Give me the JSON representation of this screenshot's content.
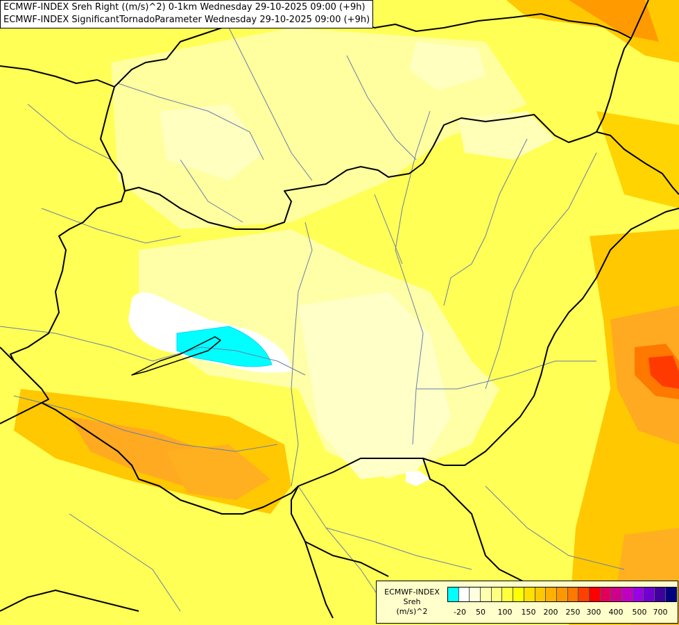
{
  "titles": [
    "ECMWF-INDEX Sreh Right ((m/s)^2) 0-1km Wednesday 29-10-2025 09:00 (+9h)",
    "ECMWF-INDEX SignificantTornadoParameter Wednesday 29-10-2025 09:00 (+9h)"
  ],
  "legend": {
    "name_lines": [
      "ECMWF-INDEX",
      "Sreh",
      "(m/s)^2"
    ],
    "colors": [
      "#00ffff",
      "#ffffff",
      "#ffffe0",
      "#ffffb0",
      "#ffff80",
      "#ffff40",
      "#ffff00",
      "#ffe000",
      "#ffc800",
      "#ffb000",
      "#ff9800",
      "#ff7800",
      "#ff4000",
      "#ff0000",
      "#e0005a",
      "#d0008c",
      "#c000c0",
      "#9b00e6",
      "#7000d0",
      "#4000a0",
      "#000080"
    ],
    "ticks": [
      "-20",
      "50",
      "100",
      "150",
      "200",
      "250",
      "300",
      "400",
      "500",
      "700"
    ]
  },
  "colors": {
    "background": "#ffff55",
    "pale": "#ffffa8",
    "paler": "#ffffc8",
    "white_zone": "#ffffff",
    "cyan_zone": "#00ffff",
    "orange": "#ffc800",
    "dark_orange": "#ff9a00",
    "red": "#ff2a00",
    "border": "#000000",
    "river": "#6a7ea8"
  }
}
